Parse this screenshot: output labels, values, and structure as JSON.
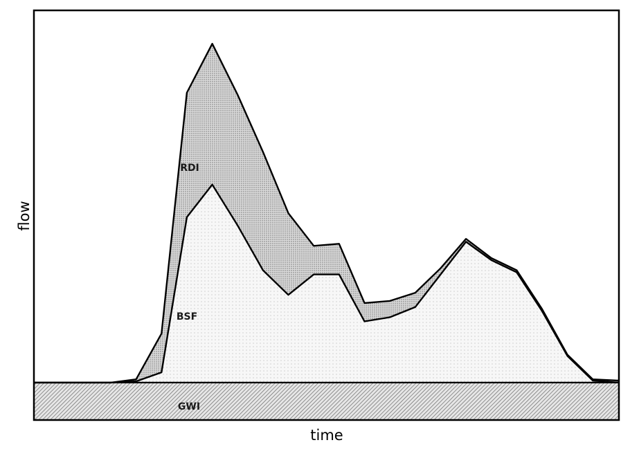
{
  "chart_data": {
    "type": "area",
    "title": "",
    "xlabel": "time",
    "ylabel": "flow",
    "grid": false,
    "legend": "none",
    "xlim": [
      0,
      23
    ],
    "ylim": [
      0,
      100
    ],
    "x": [
      0,
      1,
      2,
      3,
      4,
      5,
      6,
      7,
      8,
      9,
      10,
      11,
      12,
      13,
      14,
      15,
      16,
      17,
      18,
      19,
      20,
      21,
      22,
      23
    ],
    "series": [
      {
        "name": "GWI",
        "fill": "hatched",
        "values": [
          9,
          9,
          9,
          9,
          9,
          9,
          9,
          9,
          9,
          9,
          9,
          9,
          9,
          9,
          9,
          9,
          9,
          9,
          9,
          9,
          9,
          9,
          9,
          9
        ]
      },
      {
        "name": "BSF",
        "fill": "light-dotted",
        "values": [
          0,
          0,
          0,
          0,
          0.3,
          2.5,
          40.5,
          48.5,
          38.5,
          27.5,
          21.5,
          26.5,
          26.5,
          15,
          16,
          18.5,
          26.5,
          34.5,
          30,
          27,
          17.5,
          6.5,
          0.5,
          0
        ]
      },
      {
        "name": "RDI",
        "fill": "dense-dotted",
        "values": [
          0,
          0,
          0,
          0,
          0.5,
          9.5,
          30.5,
          34.5,
          32,
          29,
          20,
          7,
          7.5,
          4.5,
          4,
          3.5,
          1.5,
          0.7,
          0.5,
          0.5,
          0.5,
          0.3,
          0.3,
          0.5
        ]
      }
    ]
  },
  "region_labels": {
    "rdi": "RDI",
    "bsf": "BSF",
    "gwi": "GWI"
  },
  "colors": {
    "background": "#ffffff",
    "outline": "#000000",
    "rdi_fill": "#cfcfcf",
    "bsf_fill": "#f4f4f4",
    "gwi_fill": "#d6d6d6"
  }
}
